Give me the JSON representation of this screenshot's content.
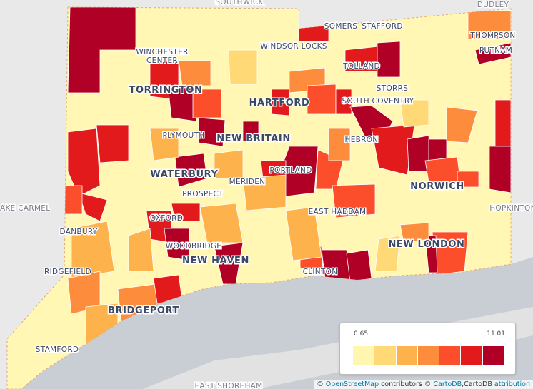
{
  "places": [
    "SOUTHWICK",
    "DUDLEY",
    "SOMERS",
    "STAFFORD",
    "THOMPSON",
    "WINCHESTER",
    "CENTER",
    "WINDSOR LOCKS",
    "PUTNAM",
    "TOLLAND",
    "TORRINGTON",
    "STORRS",
    "HARTFORD",
    "SOUTH COVENTRY",
    "PLYMOUTH",
    "NEW BRITAIN",
    "HEBRON",
    "WATERBURY",
    "PORTLAND",
    "NORWICH",
    "PROSPECT",
    "MERIDEN",
    "LAKE CARMEL",
    "HOPKINTON",
    "EAST HADDAM",
    "OXFORD",
    "DANBURY",
    "NEW LONDON",
    "WOODBRIDGE",
    "NEW HAVEN",
    "RIDGEFIELD",
    "CLINTON",
    "BRIDGEPORT",
    "STAMFORD",
    "EAST SHOREHAM"
  ],
  "legend": {
    "min": 0.65,
    "max": 11.01,
    "colors": [
      "#fff6b0",
      "#fed976",
      "#feb24c",
      "#fd8d3c",
      "#fc4e2a",
      "#e31a1c",
      "#b10026"
    ]
  },
  "attribution": [
    "©",
    "OpenStreetMap",
    "contributors ©",
    "CartoDB",
    ",CartoDB",
    "attribution"
  ]
}
